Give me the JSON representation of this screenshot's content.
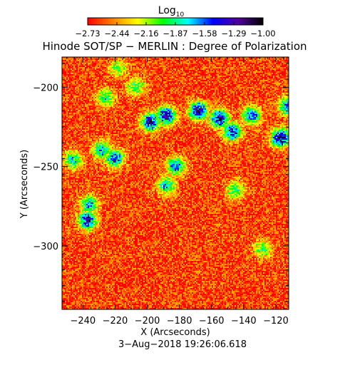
{
  "chart_data": {
    "type": "heatmap",
    "title": "Hinode SOT/SP − MERLIN : Degree of Polarization",
    "colorbar": {
      "label": "Log",
      "label_subscript": "10",
      "ticks": [
        "−2.73",
        "−2.44",
        "−2.16",
        "−1.87",
        "−1.58",
        "−1.29",
        "−1.00"
      ],
      "range": [
        -2.73,
        -1.0
      ],
      "colormap": [
        "#ff0000",
        "#ff8000",
        "#ffff00",
        "#00ff00",
        "#00ffff",
        "#0000ff",
        "#5000a0",
        "#000000"
      ]
    },
    "xlabel": "X (Arcseconds)",
    "ylabel": "Y (Arcseconds)",
    "xlim": [
      -253,
      -112
    ],
    "ylim": [
      -340,
      -181
    ],
    "xticks": [
      {
        "value": -240,
        "label": "−240"
      },
      {
        "value": -220,
        "label": "−220"
      },
      {
        "value": -200,
        "label": "−200"
      },
      {
        "value": -180,
        "label": "−180"
      },
      {
        "value": -160,
        "label": "−160"
      },
      {
        "value": -140,
        "label": "−140"
      },
      {
        "value": -120,
        "label": "−120"
      }
    ],
    "yticks": [
      {
        "value": -200,
        "label": "−200"
      },
      {
        "value": -250,
        "label": "−250"
      },
      {
        "value": -300,
        "label": "−300"
      }
    ],
    "footer": "3−Aug−2018 19:26:06.618",
    "background_level": -2.6,
    "polarization_features": [
      {
        "x": -198,
        "y": -222,
        "level": -1.15
      },
      {
        "x": -188,
        "y": -218,
        "level": -1.2
      },
      {
        "x": -168,
        "y": -215,
        "level": -1.1
      },
      {
        "x": -155,
        "y": -220,
        "level": -1.15
      },
      {
        "x": -147,
        "y": -228,
        "level": -1.3
      },
      {
        "x": -135,
        "y": -218,
        "level": -1.5
      },
      {
        "x": -117,
        "y": -232,
        "level": -1.1
      },
      {
        "x": -112,
        "y": -212,
        "level": -1.4
      },
      {
        "x": -220,
        "y": -245,
        "level": -1.4
      },
      {
        "x": -228,
        "y": -240,
        "level": -1.6
      },
      {
        "x": -182,
        "y": -250,
        "level": -1.5
      },
      {
        "x": -188,
        "y": -262,
        "level": -1.6
      },
      {
        "x": -237,
        "y": -284,
        "level": -1.25
      },
      {
        "x": -236,
        "y": -274,
        "level": -1.6
      },
      {
        "x": -246,
        "y": -246,
        "level": -1.7
      },
      {
        "x": -207,
        "y": -200,
        "level": -1.9
      },
      {
        "x": -226,
        "y": -207,
        "level": -1.8
      },
      {
        "x": -145,
        "y": -265,
        "level": -1.9
      },
      {
        "x": -128,
        "y": -302,
        "level": -1.9
      },
      {
        "x": -218,
        "y": -188,
        "level": -2.0
      }
    ]
  }
}
